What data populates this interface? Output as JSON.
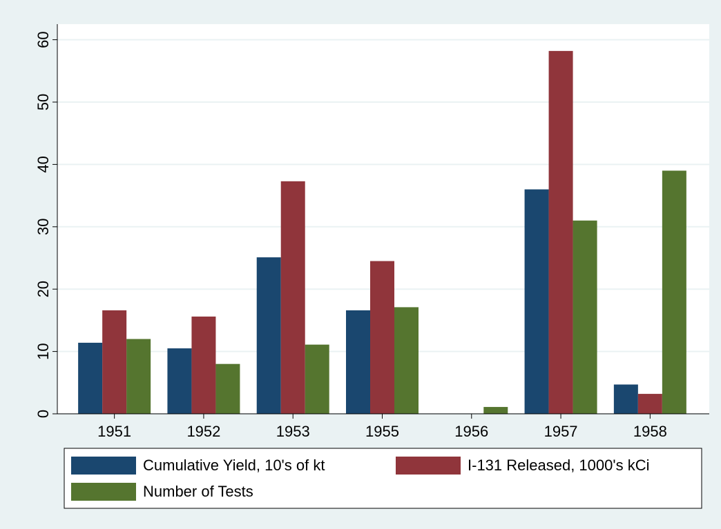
{
  "chart_data": {
    "type": "bar",
    "categories": [
      "1951",
      "1952",
      "1953",
      "1955",
      "1956",
      "1957",
      "1958"
    ],
    "series": [
      {
        "name": "Cumulative Yield, 10's of kt",
        "color": "#1a476f",
        "values": [
          11.4,
          10.5,
          25.1,
          16.6,
          0,
          36.0,
          4.7
        ]
      },
      {
        "name": "I-131 Released, 1000's kCi",
        "color": "#90353b",
        "values": [
          16.6,
          15.6,
          37.3,
          24.5,
          0,
          58.2,
          3.2
        ]
      },
      {
        "name": "Number of Tests",
        "color": "#55752f",
        "values": [
          12.0,
          8.0,
          11.1,
          17.1,
          1.1,
          31.0,
          39.0
        ]
      }
    ],
    "ylim": [
      0,
      62.5
    ],
    "yticks": [
      0,
      10,
      20,
      30,
      40,
      50,
      60
    ],
    "grid": true,
    "legend": "bottom"
  }
}
